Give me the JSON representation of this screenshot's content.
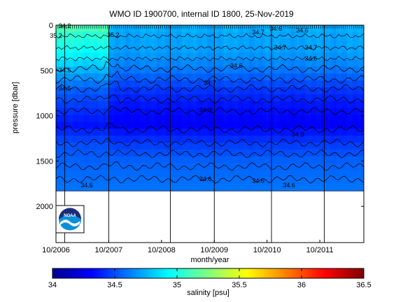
{
  "chart_data": {
    "type": "heatmap",
    "title": "WMO ID 1900700, internal ID 1800, 25-Nov-2019",
    "xlabel": "month/year",
    "ylabel": "pressure [dbar]",
    "x_ticks": [
      "10/2006",
      "10/2007",
      "10/2008",
      "10/2009",
      "10/2010",
      "10/2011"
    ],
    "y_ticks": [
      0,
      500,
      1000,
      1500,
      2000
    ],
    "ylim": [
      2400,
      0
    ],
    "data_max_pressure": 1830,
    "colorbar": {
      "label": "salinity [psu]",
      "range": [
        34,
        36.5
      ],
      "ticks": [
        "34",
        "34.5",
        "35",
        "35.5",
        "36",
        "36.5"
      ],
      "colormap": "jet"
    },
    "salinity_profile": {
      "pressure": [
        0,
        100,
        300,
        500,
        700,
        900,
        1100,
        1300,
        1500,
        1830
      ],
      "early_period_upto_2007_10": [
        35.15,
        35.05,
        34.95,
        34.75,
        34.55,
        34.45,
        34.35,
        34.5,
        34.55,
        34.6
      ],
      "later_period": [
        34.75,
        34.72,
        34.7,
        34.6,
        34.45,
        34.35,
        34.3,
        34.45,
        34.55,
        34.6
      ]
    },
    "contour_labels": [
      {
        "text": "34.2",
        "date": "2006-12",
        "p": 30
      },
      {
        "text": "35.2",
        "date": "2006-10",
        "p": 140
      },
      {
        "text": "35.2",
        "date": "2007-11",
        "p": 130
      },
      {
        "text": "34.5",
        "date": "2006-12",
        "p": 520
      },
      {
        "text": "34.5",
        "date": "2006-12",
        "p": 720
      },
      {
        "text": "34.7",
        "date": "2009-09",
        "p": 660
      },
      {
        "text": "34.6",
        "date": "2010-03",
        "p": 470
      },
      {
        "text": "34.7",
        "date": "2010-08",
        "p": 100
      },
      {
        "text": "34.6",
        "date": "2010-12",
        "p": 60
      },
      {
        "text": "34.6",
        "date": "2011-06",
        "p": 80
      },
      {
        "text": "34.7",
        "date": "2011-01",
        "p": 270
      },
      {
        "text": "34.7",
        "date": "2011-08",
        "p": 270
      },
      {
        "text": "34.6",
        "date": "2011-08",
        "p": 390
      },
      {
        "text": "34.3",
        "date": "2009-08",
        "p": 960
      },
      {
        "text": "34.3",
        "date": "2011-05",
        "p": 1230
      },
      {
        "text": "34.6",
        "date": "2007-05",
        "p": 1790
      },
      {
        "text": "34.6",
        "date": "2009-08",
        "p": 1720
      },
      {
        "text": "34.6",
        "date": "2010-08",
        "p": 1740
      },
      {
        "text": "34.6",
        "date": "2011-03",
        "p": 1790
      }
    ],
    "profile_markers": [
      "2006-12",
      "2007-10",
      "2008-12",
      "2009-10",
      "2010-11",
      "2011-11"
    ],
    "date_range": [
      "2006-10",
      "2012-08"
    ]
  },
  "logo": {
    "icon": "noaa-logo",
    "text": "NOAA"
  }
}
